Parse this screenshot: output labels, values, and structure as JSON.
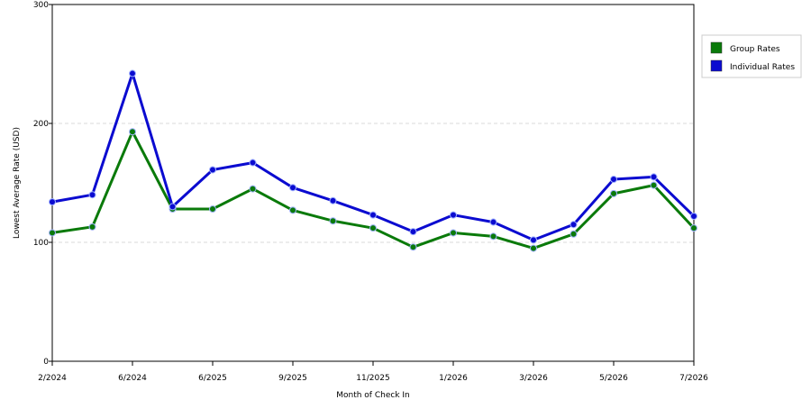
{
  "chart_data": {
    "type": "line",
    "title": "",
    "xlabel": "Month of Check In",
    "ylabel": "Lowest Average Rate (USD)",
    "ylim": [
      0,
      300
    ],
    "yticks": [
      0,
      100,
      200,
      300
    ],
    "grid": "horizontal dashed",
    "legend_position": "right",
    "x_tick_labels": [
      "2/2024",
      "6/2024",
      "6/2025",
      "9/2025",
      "11/2025",
      "1/2026",
      "3/2026",
      "5/2026",
      "7/2026"
    ],
    "series": [
      {
        "name": "Group Rates",
        "color": "#0a7a0a",
        "values": [
          108,
          113,
          193,
          128,
          128,
          145,
          127,
          118,
          112,
          96,
          108,
          105,
          95,
          107,
          141,
          148,
          112
        ]
      },
      {
        "name": "Individual Rates",
        "color": "#0b0bd0",
        "values": [
          134,
          140,
          242,
          130,
          161,
          167,
          146,
          135,
          123,
          109,
          123,
          117,
          102,
          115,
          153,
          155,
          122
        ]
      }
    ]
  }
}
